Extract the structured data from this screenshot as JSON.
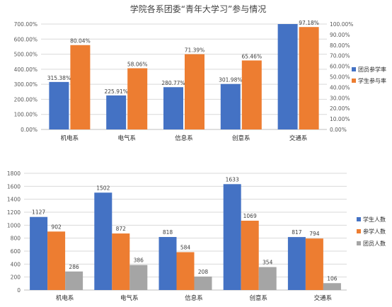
{
  "chart_data": [
    {
      "type": "bar",
      "title": "学院各系团委“青年大学习”参与情况",
      "categories": [
        "机电系",
        "电气系",
        "信息系",
        "创意系",
        "交通系"
      ],
      "series": [
        {
          "name": "团员参学率",
          "axis": "left",
          "values": [
            315.38,
            225.91,
            280.77,
            301.98,
            700.0
          ],
          "labels": [
            "315.38%",
            "225.91%",
            "280.77%",
            "301.98%",
            ""
          ],
          "color": "#4472C4"
        },
        {
          "name": "学生参与率",
          "axis": "right",
          "values": [
            80.04,
            58.06,
            71.39,
            65.46,
            97.18
          ],
          "labels": [
            "80.04%",
            "58.06%",
            "71.39%",
            "65.46%",
            "97.18%"
          ],
          "color": "#ED7D31"
        }
      ],
      "ylim_left": [
        0,
        700
      ],
      "ylim_right": [
        0,
        100
      ],
      "yticks_left": [
        "0.00%",
        "100.00%",
        "200.00%",
        "300.00%",
        "400.00%",
        "500.00%",
        "600.00%",
        "700.00%"
      ],
      "yticks_right": [
        "0.00%",
        "10.00%",
        "20.00%",
        "30.00%",
        "40.00%",
        "50.00%",
        "60.00%",
        "70.00%",
        "80.00%",
        "90.00%",
        "100.00%"
      ],
      "grid": true,
      "legend": "right"
    },
    {
      "type": "bar",
      "title": "",
      "categories": [
        "机电系",
        "电气系",
        "信息系",
        "创意系",
        "交通系"
      ],
      "series": [
        {
          "name": "学生人数",
          "values": [
            1127,
            1502,
            818,
            1633,
            817
          ],
          "color": "#4472C4"
        },
        {
          "name": "参学人数",
          "values": [
            902,
            872,
            584,
            1069,
            794
          ],
          "color": "#ED7D31"
        },
        {
          "name": "团员人数",
          "values": [
            286,
            386,
            208,
            354,
            106
          ],
          "color": "#A5A5A5"
        }
      ],
      "ylim": [
        0,
        1800
      ],
      "yticks": [
        "0",
        "200",
        "400",
        "600",
        "800",
        "1000",
        "1200",
        "1400",
        "1600",
        "1800"
      ],
      "grid": true,
      "legend": "right"
    }
  ]
}
